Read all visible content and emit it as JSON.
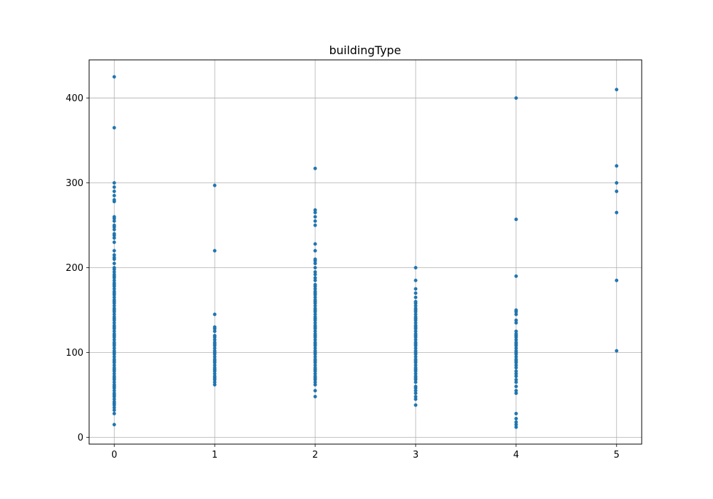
{
  "chart_data": {
    "type": "scatter",
    "title": "buildingType",
    "xlabel": "",
    "ylabel": "",
    "xlim": [
      -0.25,
      5.25
    ],
    "ylim": [
      -8,
      445
    ],
    "grid": true,
    "color": "#1f77b4",
    "x_ticks": [
      0,
      1,
      2,
      3,
      4,
      5
    ],
    "y_ticks": [
      0,
      100,
      200,
      300,
      400
    ],
    "series": [
      {
        "x": 0,
        "y": [
          15,
          28,
          32,
          35,
          38,
          40,
          42,
          45,
          48,
          50,
          52,
          55,
          58,
          60,
          62,
          65,
          68,
          70,
          72,
          75,
          78,
          80,
          82,
          85,
          88,
          90,
          92,
          95,
          98,
          100,
          102,
          105,
          108,
          110,
          112,
          115,
          118,
          120,
          122,
          125,
          128,
          130,
          132,
          135,
          138,
          140,
          142,
          145,
          148,
          150,
          152,
          155,
          158,
          160,
          162,
          165,
          168,
          170,
          172,
          175,
          178,
          180,
          182,
          185,
          188,
          190,
          192,
          195,
          198,
          200,
          205,
          210,
          212,
          215,
          220,
          230,
          235,
          238,
          240,
          245,
          248,
          250,
          255,
          258,
          260,
          278,
          280,
          285,
          290,
          295,
          300,
          365,
          425
        ]
      },
      {
        "x": 1,
        "y": [
          62,
          65,
          68,
          70,
          72,
          75,
          78,
          80,
          82,
          85,
          88,
          90,
          92,
          95,
          98,
          100,
          102,
          105,
          108,
          110,
          112,
          115,
          118,
          120,
          125,
          128,
          130,
          145,
          220,
          297
        ]
      },
      {
        "x": 2,
        "y": [
          48,
          55,
          62,
          65,
          68,
          70,
          72,
          75,
          78,
          80,
          82,
          85,
          88,
          90,
          92,
          95,
          98,
          100,
          102,
          105,
          108,
          110,
          112,
          115,
          118,
          120,
          122,
          125,
          128,
          130,
          132,
          135,
          138,
          140,
          142,
          145,
          148,
          150,
          152,
          155,
          158,
          160,
          162,
          165,
          168,
          170,
          172,
          175,
          178,
          180,
          185,
          188,
          192,
          195,
          200,
          205,
          208,
          210,
          220,
          228,
          250,
          255,
          260,
          265,
          268,
          317
        ]
      },
      {
        "x": 3,
        "y": [
          38,
          45,
          48,
          52,
          55,
          58,
          60,
          65,
          68,
          70,
          72,
          75,
          78,
          80,
          82,
          85,
          88,
          90,
          92,
          95,
          98,
          100,
          102,
          105,
          108,
          110,
          112,
          115,
          118,
          120,
          122,
          125,
          128,
          130,
          132,
          135,
          138,
          140,
          142,
          145,
          148,
          150,
          152,
          155,
          158,
          160,
          165,
          170,
          175,
          185,
          200
        ]
      },
      {
        "x": 4,
        "y": [
          12,
          15,
          18,
          22,
          28,
          52,
          55,
          60,
          65,
          68,
          72,
          75,
          78,
          82,
          85,
          88,
          90,
          92,
          95,
          98,
          100,
          102,
          105,
          108,
          110,
          112,
          115,
          118,
          120,
          122,
          125,
          135,
          138,
          145,
          148,
          150,
          190,
          257,
          400
        ]
      },
      {
        "x": 5,
        "y": [
          102,
          185,
          265,
          290,
          300,
          320,
          410
        ]
      }
    ]
  }
}
